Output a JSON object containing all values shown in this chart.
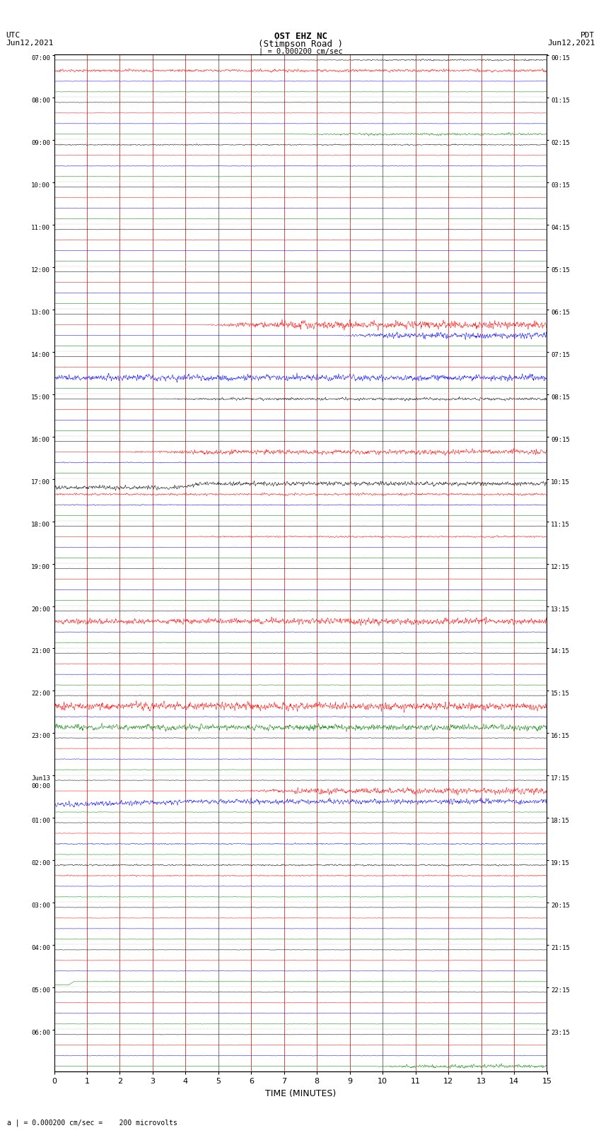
{
  "title_line1": "OST EHZ NC",
  "title_line2": "(Stimpson Road )",
  "title_line3": "| = 0.000200 cm/sec",
  "left_label_top": "UTC",
  "left_label_bot": "Jun12,2021",
  "right_label_top": "PDT",
  "right_label_bot": "Jun12,2021",
  "xlabel": "TIME (MINUTES)",
  "footnote": "a | = 0.000200 cm/sec =    200 microvolts",
  "bg_color": "#ffffff",
  "xmin": 0,
  "xmax": 15,
  "xticks": [
    0,
    1,
    2,
    3,
    4,
    5,
    6,
    7,
    8,
    9,
    10,
    11,
    12,
    13,
    14,
    15
  ],
  "noise_seed": 42,
  "n_rows": 24,
  "row_utc_labels": [
    "07:00",
    "08:00",
    "09:00",
    "10:00",
    "11:00",
    "12:00",
    "13:00",
    "14:00",
    "15:00",
    "16:00",
    "17:00",
    "18:00",
    "19:00",
    "20:00",
    "21:00",
    "22:00",
    "23:00",
    "Jun13\n00:00",
    "01:00",
    "02:00",
    "03:00",
    "04:00",
    "05:00",
    "06:00"
  ],
  "row_pdt_labels": [
    "00:15",
    "01:15",
    "02:15",
    "03:15",
    "04:15",
    "05:15",
    "06:15",
    "07:15",
    "08:15",
    "09:15",
    "10:15",
    "11:15",
    "12:15",
    "13:15",
    "14:15",
    "15:15",
    "16:15",
    "17:15",
    "18:15",
    "19:15",
    "20:15",
    "21:15",
    "22:15",
    "23:15"
  ]
}
